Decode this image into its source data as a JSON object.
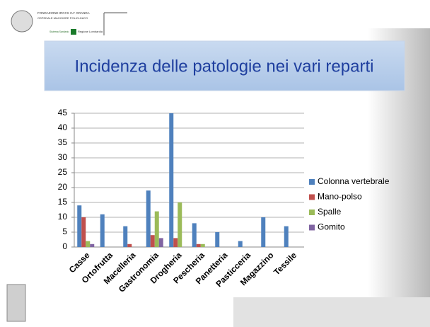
{
  "header": {
    "institution": "FONDAZIONE IRCCS CA' GRANDA",
    "hospital": "OSPEDALE MAGGIORE POLICLINICO",
    "system": "Sistema Sanitario",
    "region": "Regione Lombardia"
  },
  "chart_data": {
    "type": "bar",
    "title": "Incidenza delle patologie nei vari reparti",
    "categories": [
      "Casse",
      "Ortofrutta",
      "Macelleria",
      "Gastronomia",
      "Drogheria",
      "Pescheria",
      "Panetteria",
      "Pasticceria",
      "Magazzino",
      "Tessile"
    ],
    "series": [
      {
        "name": "Colonna vertebrale",
        "color": "#4f81bd",
        "values": [
          14,
          11,
          7,
          19,
          45,
          8,
          5,
          2,
          10,
          7
        ]
      },
      {
        "name": "Mano-polso",
        "color": "#c0504d",
        "values": [
          10,
          0,
          1,
          4,
          3,
          1,
          0,
          0,
          0,
          0
        ]
      },
      {
        "name": "Spalle",
        "color": "#9bbb59",
        "values": [
          2,
          0,
          0,
          12,
          15,
          1,
          0,
          0,
          0,
          0
        ]
      },
      {
        "name": "Gomito",
        "color": "#8064a2",
        "values": [
          1,
          0,
          0,
          3,
          0,
          0,
          0,
          0,
          0,
          0
        ]
      }
    ],
    "ylim": [
      0,
      45
    ],
    "yticks": [
      0,
      5,
      10,
      15,
      20,
      25,
      30,
      35,
      40,
      45
    ],
    "grid": true,
    "legend": "right"
  }
}
